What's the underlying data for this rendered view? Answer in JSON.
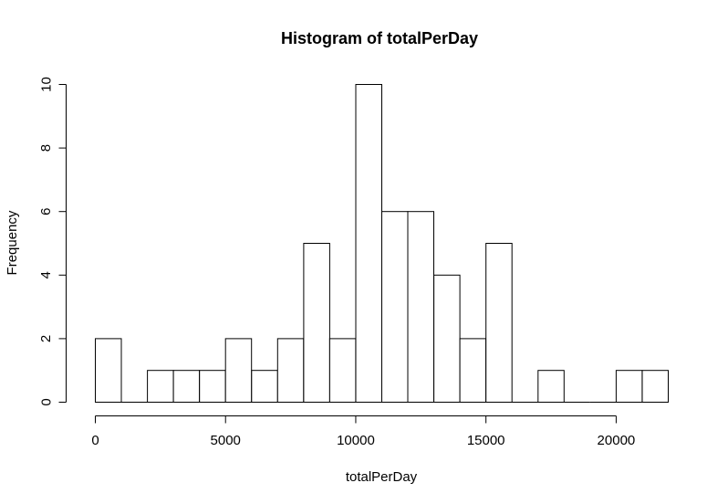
{
  "chart_data": {
    "type": "bar",
    "title": "Histogram of totalPerDay",
    "xlabel": "totalPerDay",
    "ylabel": "Frequency",
    "bin_width": 1000,
    "bins": [
      {
        "start": 0,
        "end": 1000,
        "count": 2
      },
      {
        "start": 1000,
        "end": 2000,
        "count": 0
      },
      {
        "start": 2000,
        "end": 3000,
        "count": 1
      },
      {
        "start": 3000,
        "end": 4000,
        "count": 1
      },
      {
        "start": 4000,
        "end": 5000,
        "count": 1
      },
      {
        "start": 5000,
        "end": 6000,
        "count": 2
      },
      {
        "start": 6000,
        "end": 7000,
        "count": 1
      },
      {
        "start": 7000,
        "end": 8000,
        "count": 2
      },
      {
        "start": 8000,
        "end": 9000,
        "count": 5
      },
      {
        "start": 9000,
        "end": 10000,
        "count": 2
      },
      {
        "start": 10000,
        "end": 11000,
        "count": 10
      },
      {
        "start": 11000,
        "end": 12000,
        "count": 6
      },
      {
        "start": 12000,
        "end": 13000,
        "count": 6
      },
      {
        "start": 13000,
        "end": 14000,
        "count": 4
      },
      {
        "start": 14000,
        "end": 15000,
        "count": 2
      },
      {
        "start": 15000,
        "end": 16000,
        "count": 5
      },
      {
        "start": 16000,
        "end": 17000,
        "count": 0
      },
      {
        "start": 17000,
        "end": 18000,
        "count": 1
      },
      {
        "start": 18000,
        "end": 19000,
        "count": 0
      },
      {
        "start": 19000,
        "end": 20000,
        "count": 0
      },
      {
        "start": 20000,
        "end": 21000,
        "count": 1
      },
      {
        "start": 21000,
        "end": 22000,
        "count": 1
      }
    ],
    "xlim": [
      0,
      22000
    ],
    "ylim": [
      0,
      10
    ],
    "x_ticks": [
      0,
      5000,
      10000,
      15000,
      20000
    ],
    "x_tick_labels": [
      "0",
      "5000",
      "10000",
      "15000",
      "20000"
    ],
    "y_ticks": [
      0,
      2,
      4,
      6,
      8,
      10
    ],
    "y_tick_labels": [
      "0",
      "2",
      "4",
      "6",
      "8",
      "10"
    ],
    "grid": false,
    "bar_fill": "#ffffff",
    "bar_stroke": "#000000"
  }
}
